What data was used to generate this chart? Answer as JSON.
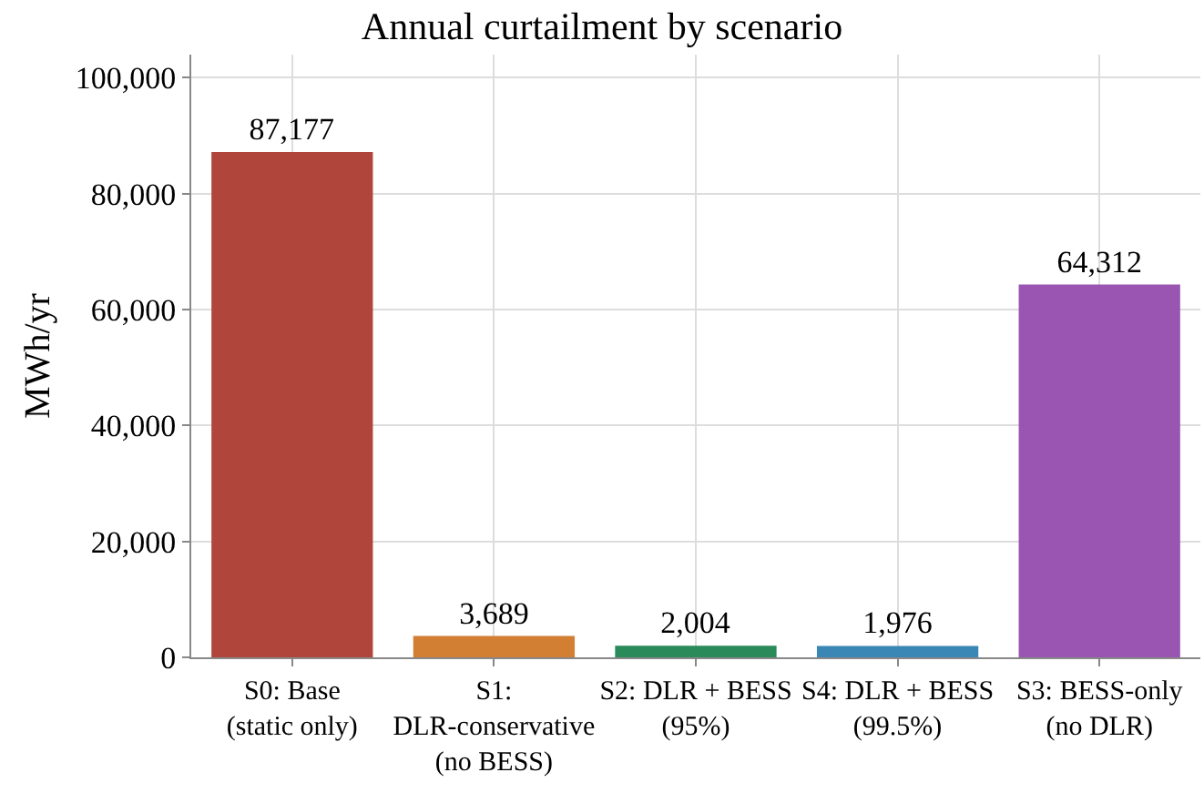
{
  "chart_data": {
    "type": "bar",
    "title": "Annual curtailment by scenario",
    "ylabel": "MWh/yr",
    "categories": [
      "S0: Base (static only)",
      "S1: DLR-conservative (no BESS)",
      "S2: DLR + BESS (95%)",
      "S4: DLR + BESS (99.5%)",
      "S3: BESS-only (no DLR)"
    ],
    "values": [
      87177,
      3689,
      2004,
      1976,
      64312
    ],
    "colors": [
      "#b0453b",
      "#d27f34",
      "#2a8a5a",
      "#3a86b4",
      "#9a55b2"
    ],
    "value_labels": [
      "87,177",
      "3,689",
      "2,004",
      "1,976",
      "64,312"
    ],
    "ylim": [
      0,
      104000
    ],
    "yticks": [
      {
        "value": 0,
        "label": "0"
      },
      {
        "value": 20000,
        "label": "20,000"
      },
      {
        "value": 40000,
        "label": "40,000"
      },
      {
        "value": 60000,
        "label": "60,000"
      },
      {
        "value": 80000,
        "label": "80,000"
      },
      {
        "value": 100000,
        "label": "100,000"
      }
    ],
    "grid": true
  }
}
